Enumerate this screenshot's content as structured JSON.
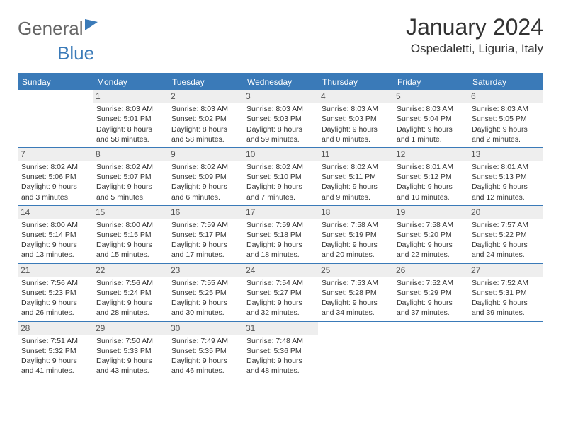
{
  "logo": {
    "part1": "General",
    "part2": "Blue"
  },
  "title": "January 2024",
  "location": "Ospedaletti, Liguria, Italy",
  "weekdays": [
    "Sunday",
    "Monday",
    "Tuesday",
    "Wednesday",
    "Thursday",
    "Friday",
    "Saturday"
  ],
  "colors": {
    "header_bg": "#3a7ab8",
    "header_text": "#ffffff",
    "border": "#3a7ab8",
    "daynum_bg": "#eeeeee",
    "text": "#333333"
  },
  "start_offset": 1,
  "days": [
    {
      "n": 1,
      "sunrise": "8:03 AM",
      "sunset": "5:01 PM",
      "daylight": "8 hours and 58 minutes."
    },
    {
      "n": 2,
      "sunrise": "8:03 AM",
      "sunset": "5:02 PM",
      "daylight": "8 hours and 58 minutes."
    },
    {
      "n": 3,
      "sunrise": "8:03 AM",
      "sunset": "5:03 PM",
      "daylight": "8 hours and 59 minutes."
    },
    {
      "n": 4,
      "sunrise": "8:03 AM",
      "sunset": "5:03 PM",
      "daylight": "9 hours and 0 minutes."
    },
    {
      "n": 5,
      "sunrise": "8:03 AM",
      "sunset": "5:04 PM",
      "daylight": "9 hours and 1 minute."
    },
    {
      "n": 6,
      "sunrise": "8:03 AM",
      "sunset": "5:05 PM",
      "daylight": "9 hours and 2 minutes."
    },
    {
      "n": 7,
      "sunrise": "8:02 AM",
      "sunset": "5:06 PM",
      "daylight": "9 hours and 3 minutes."
    },
    {
      "n": 8,
      "sunrise": "8:02 AM",
      "sunset": "5:07 PM",
      "daylight": "9 hours and 5 minutes."
    },
    {
      "n": 9,
      "sunrise": "8:02 AM",
      "sunset": "5:09 PM",
      "daylight": "9 hours and 6 minutes."
    },
    {
      "n": 10,
      "sunrise": "8:02 AM",
      "sunset": "5:10 PM",
      "daylight": "9 hours and 7 minutes."
    },
    {
      "n": 11,
      "sunrise": "8:02 AM",
      "sunset": "5:11 PM",
      "daylight": "9 hours and 9 minutes."
    },
    {
      "n": 12,
      "sunrise": "8:01 AM",
      "sunset": "5:12 PM",
      "daylight": "9 hours and 10 minutes."
    },
    {
      "n": 13,
      "sunrise": "8:01 AM",
      "sunset": "5:13 PM",
      "daylight": "9 hours and 12 minutes."
    },
    {
      "n": 14,
      "sunrise": "8:00 AM",
      "sunset": "5:14 PM",
      "daylight": "9 hours and 13 minutes."
    },
    {
      "n": 15,
      "sunrise": "8:00 AM",
      "sunset": "5:15 PM",
      "daylight": "9 hours and 15 minutes."
    },
    {
      "n": 16,
      "sunrise": "7:59 AM",
      "sunset": "5:17 PM",
      "daylight": "9 hours and 17 minutes."
    },
    {
      "n": 17,
      "sunrise": "7:59 AM",
      "sunset": "5:18 PM",
      "daylight": "9 hours and 18 minutes."
    },
    {
      "n": 18,
      "sunrise": "7:58 AM",
      "sunset": "5:19 PM",
      "daylight": "9 hours and 20 minutes."
    },
    {
      "n": 19,
      "sunrise": "7:58 AM",
      "sunset": "5:20 PM",
      "daylight": "9 hours and 22 minutes."
    },
    {
      "n": 20,
      "sunrise": "7:57 AM",
      "sunset": "5:22 PM",
      "daylight": "9 hours and 24 minutes."
    },
    {
      "n": 21,
      "sunrise": "7:56 AM",
      "sunset": "5:23 PM",
      "daylight": "9 hours and 26 minutes."
    },
    {
      "n": 22,
      "sunrise": "7:56 AM",
      "sunset": "5:24 PM",
      "daylight": "9 hours and 28 minutes."
    },
    {
      "n": 23,
      "sunrise": "7:55 AM",
      "sunset": "5:25 PM",
      "daylight": "9 hours and 30 minutes."
    },
    {
      "n": 24,
      "sunrise": "7:54 AM",
      "sunset": "5:27 PM",
      "daylight": "9 hours and 32 minutes."
    },
    {
      "n": 25,
      "sunrise": "7:53 AM",
      "sunset": "5:28 PM",
      "daylight": "9 hours and 34 minutes."
    },
    {
      "n": 26,
      "sunrise": "7:52 AM",
      "sunset": "5:29 PM",
      "daylight": "9 hours and 37 minutes."
    },
    {
      "n": 27,
      "sunrise": "7:52 AM",
      "sunset": "5:31 PM",
      "daylight": "9 hours and 39 minutes."
    },
    {
      "n": 28,
      "sunrise": "7:51 AM",
      "sunset": "5:32 PM",
      "daylight": "9 hours and 41 minutes."
    },
    {
      "n": 29,
      "sunrise": "7:50 AM",
      "sunset": "5:33 PM",
      "daylight": "9 hours and 43 minutes."
    },
    {
      "n": 30,
      "sunrise": "7:49 AM",
      "sunset": "5:35 PM",
      "daylight": "9 hours and 46 minutes."
    },
    {
      "n": 31,
      "sunrise": "7:48 AM",
      "sunset": "5:36 PM",
      "daylight": "9 hours and 48 minutes."
    }
  ],
  "labels": {
    "sunrise": "Sunrise:",
    "sunset": "Sunset:",
    "daylight": "Daylight:"
  }
}
